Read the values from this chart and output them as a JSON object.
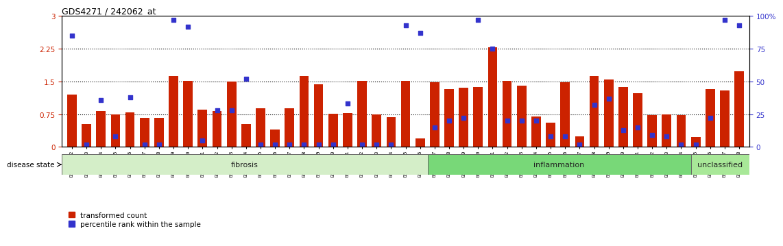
{
  "title": "GDS4271 / 242062_at",
  "samples": [
    "GSM380382",
    "GSM380383",
    "GSM380384",
    "GSM380385",
    "GSM380386",
    "GSM380387",
    "GSM380388",
    "GSM380389",
    "GSM380390",
    "GSM380391",
    "GSM380392",
    "GSM380393",
    "GSM380394",
    "GSM380395",
    "GSM380396",
    "GSM380397",
    "GSM380398",
    "GSM380399",
    "GSM380400",
    "GSM380401",
    "GSM380402",
    "GSM380403",
    "GSM380404",
    "GSM380405",
    "GSM380406",
    "GSM380407",
    "GSM380408",
    "GSM380409",
    "GSM380410",
    "GSM380411",
    "GSM380412",
    "GSM380413",
    "GSM380414",
    "GSM380415",
    "GSM380416",
    "GSM380417",
    "GSM380418",
    "GSM380419",
    "GSM380420",
    "GSM380421",
    "GSM380422",
    "GSM380423",
    "GSM380424",
    "GSM380425",
    "GSM380426",
    "GSM380427",
    "GSM380428"
  ],
  "red_values": [
    1.2,
    0.52,
    0.82,
    0.75,
    0.8,
    0.67,
    0.67,
    1.62,
    1.52,
    0.85,
    0.82,
    1.5,
    0.52,
    0.88,
    0.4,
    0.88,
    1.62,
    1.43,
    0.76,
    0.78,
    1.52,
    0.75,
    0.68,
    1.52,
    0.2,
    1.48,
    1.32,
    1.35,
    1.37,
    2.28,
    1.52,
    1.4,
    0.7,
    0.55,
    1.48,
    0.25,
    1.62,
    1.55,
    1.38,
    1.23,
    0.73,
    0.75,
    0.73,
    0.23,
    1.32,
    1.3,
    1.73
  ],
  "blue_values_pct": [
    85,
    2,
    36,
    8,
    38,
    2,
    2,
    97,
    92,
    5,
    28,
    28,
    52,
    2,
    2,
    2,
    2,
    2,
    2,
    33,
    2,
    2,
    2,
    93,
    87,
    15,
    20,
    22,
    97,
    75,
    20,
    20,
    20,
    8,
    8,
    2,
    32,
    37,
    13,
    15,
    9,
    8,
    2,
    2,
    22,
    97,
    93
  ],
  "disease_groups": [
    {
      "label": "fibrosis",
      "start": 0,
      "end": 25,
      "color": "#d4eec8"
    },
    {
      "label": "inflammation",
      "start": 25,
      "end": 43,
      "color": "#78d878"
    },
    {
      "label": "unclassified",
      "start": 43,
      "end": 47,
      "color": "#a8e898"
    }
  ],
  "bar_color": "#cc2200",
  "dot_color": "#3333cc",
  "left_yticks": [
    0,
    0.75,
    1.5,
    2.25,
    3.0
  ],
  "left_yticklabels": [
    "0",
    "0.75",
    "1.5",
    "2.25",
    "3"
  ],
  "right_yticks": [
    0,
    25,
    50,
    75,
    100
  ],
  "right_yticklabels": [
    "0",
    "25",
    "50",
    "75",
    "100%"
  ],
  "left_ylim": [
    0,
    3.0
  ],
  "right_ylim": [
    0,
    100
  ],
  "hlines": [
    0.75,
    1.5,
    2.25
  ],
  "title_color": "#000000",
  "left_tick_color": "#cc2200",
  "right_tick_color": "#3333cc"
}
